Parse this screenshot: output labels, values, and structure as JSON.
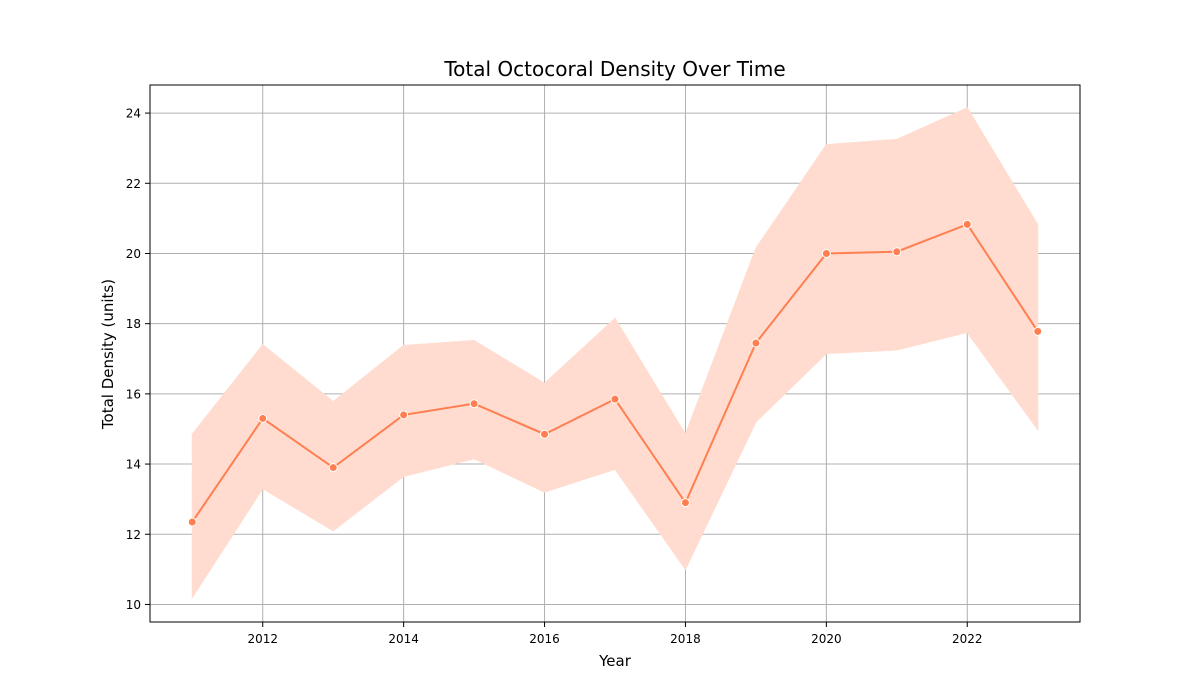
{
  "chart_data": {
    "type": "line",
    "title": "Total Octocoral Density Over Time",
    "xlabel": "Year",
    "ylabel": "Total Density (units)",
    "xlim": [
      2010.4,
      2023.6
    ],
    "ylim": [
      9.5,
      24.8
    ],
    "xticks": [
      2012,
      2014,
      2016,
      2018,
      2020,
      2022
    ],
    "yticks": [
      10,
      12,
      14,
      16,
      18,
      20,
      22,
      24
    ],
    "grid": true,
    "legend": "none",
    "series": [
      {
        "x": [
          2011,
          2012,
          2013,
          2014,
          2015,
          2016,
          2017,
          2018,
          2019,
          2020,
          2021,
          2022,
          2023
        ],
        "y": [
          12.35,
          15.3,
          13.9,
          15.4,
          15.72,
          14.85,
          15.85,
          12.9,
          17.45,
          20.0,
          20.05,
          20.83,
          17.78
        ],
        "ci_lower": [
          10.2,
          13.3,
          12.1,
          13.65,
          14.15,
          13.2,
          13.85,
          11.0,
          15.2,
          17.15,
          17.25,
          17.75,
          14.98
        ],
        "ci_upper": [
          14.85,
          17.4,
          15.78,
          17.38,
          17.52,
          16.3,
          18.15,
          14.85,
          20.15,
          23.1,
          23.25,
          24.15,
          20.82
        ],
        "color": "#ff7f50",
        "band_color": "#ffdccf"
      }
    ]
  }
}
